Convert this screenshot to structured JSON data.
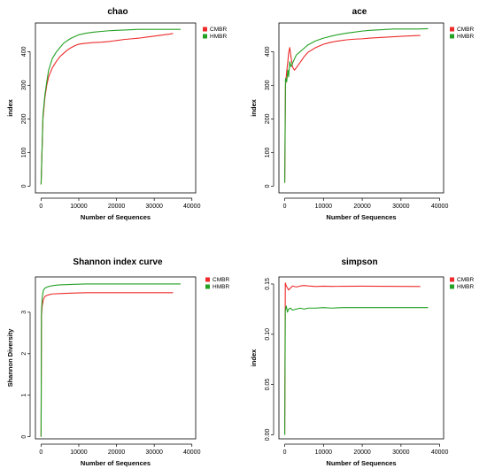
{
  "chart_data": [
    {
      "type": "line",
      "title": "chao",
      "xlabel": "Number of Sequences",
      "ylabel": "index",
      "xlim": [
        -1500,
        41000
      ],
      "ylim": [
        -20,
        485
      ],
      "xticks": [
        0,
        10000,
        20000,
        30000,
        40000
      ],
      "yticks": [
        0,
        100,
        200,
        300,
        400
      ],
      "grid": false,
      "legend_position": "top-right",
      "series": [
        {
          "name": "CMBR",
          "color": "#ee2a2a",
          "x": [
            0,
            500,
            1000,
            1500,
            2000,
            3000,
            4000,
            5000,
            6000,
            7000,
            8000,
            9000,
            10000,
            12000,
            14000,
            16000,
            18000,
            20000,
            22000,
            24000,
            26000,
            28000,
            30000,
            32000,
            34000,
            35000
          ],
          "y": [
            5,
            200,
            262,
            300,
            325,
            352,
            370,
            385,
            395,
            405,
            412,
            418,
            422,
            425,
            427,
            428,
            430,
            433,
            436,
            438,
            440,
            443,
            446,
            449,
            452,
            454
          ]
        },
        {
          "name": "HMBR",
          "color": "#23a123",
          "x": [
            0,
            500,
            1000,
            1500,
            2000,
            3000,
            4000,
            5000,
            6000,
            7000,
            8000,
            9000,
            10000,
            12000,
            14000,
            16000,
            18000,
            20000,
            22000,
            24000,
            26000,
            28000,
            30000,
            32000,
            34000,
            37000
          ],
          "y": [
            5,
            210,
            270,
            310,
            345,
            380,
            398,
            412,
            425,
            433,
            440,
            445,
            450,
            455,
            458,
            460,
            462,
            463,
            464,
            465,
            466,
            466,
            466,
            466,
            466,
            466
          ]
        }
      ]
    },
    {
      "type": "line",
      "title": "ace",
      "xlabel": "Number of Sequences",
      "ylabel": "index",
      "xlim": [
        -1500,
        41000
      ],
      "ylim": [
        -20,
        485
      ],
      "xticks": [
        0,
        10000,
        20000,
        30000,
        40000
      ],
      "yticks": [
        0,
        100,
        200,
        300,
        400
      ],
      "grid": false,
      "legend_position": "top-right",
      "series": [
        {
          "name": "CMBR",
          "color": "#ee2a2a",
          "x": [
            0,
            200,
            500,
            800,
            1000,
            1300,
            1600,
            2000,
            2500,
            3000,
            4000,
            5000,
            6000,
            8000,
            10000,
            12000,
            14000,
            16000,
            18000,
            20000,
            22000,
            25000,
            28000,
            31000,
            35000
          ],
          "y": [
            10,
            300,
            340,
            370,
            395,
            412,
            385,
            355,
            345,
            352,
            368,
            385,
            398,
            412,
            422,
            428,
            432,
            435,
            437,
            438,
            440,
            442,
            444,
            446,
            448
          ]
        },
        {
          "name": "HMBR",
          "color": "#23a123",
          "x": [
            0,
            200,
            500,
            800,
            1000,
            1300,
            1600,
            2000,
            2500,
            3000,
            4000,
            5000,
            6000,
            8000,
            10000,
            12000,
            14000,
            16000,
            18000,
            20000,
            22000,
            25000,
            28000,
            31000,
            34000,
            37000
          ],
          "y": [
            10,
            320,
            310,
            345,
            325,
            370,
            355,
            365,
            378,
            390,
            400,
            410,
            420,
            432,
            440,
            446,
            451,
            455,
            458,
            461,
            463,
            465,
            467,
            467,
            467,
            468
          ]
        }
      ]
    },
    {
      "type": "line",
      "title": "Shannon index curve",
      "xlabel": "Number of Sequences",
      "ylabel": "Shannon Diversity",
      "xlim": [
        -1500,
        41000
      ],
      "ylim": [
        -0.05,
        3.85
      ],
      "xticks": [
        0,
        10000,
        20000,
        30000,
        40000
      ],
      "yticks": [
        0,
        1,
        2,
        3
      ],
      "grid": false,
      "legend_position": "top-right",
      "series": [
        {
          "name": "CMBR",
          "color": "#ee2a2a",
          "x": [
            0,
            100,
            300,
            600,
            1000,
            2000,
            3000,
            5000,
            8000,
            12000,
            16000,
            20000,
            25000,
            30000,
            35000
          ],
          "y": [
            0,
            2.9,
            3.15,
            3.3,
            3.38,
            3.42,
            3.44,
            3.45,
            3.46,
            3.47,
            3.47,
            3.47,
            3.47,
            3.47,
            3.47
          ]
        },
        {
          "name": "HMBR",
          "color": "#23a123",
          "x": [
            0,
            100,
            300,
            600,
            1000,
            2000,
            3000,
            5000,
            8000,
            12000,
            16000,
            20000,
            25000,
            30000,
            35000,
            37000
          ],
          "y": [
            0,
            3.0,
            3.35,
            3.52,
            3.58,
            3.62,
            3.64,
            3.66,
            3.67,
            3.68,
            3.68,
            3.68,
            3.68,
            3.68,
            3.68,
            3.68
          ]
        }
      ]
    },
    {
      "type": "line",
      "title": "simpson",
      "xlabel": "Number of Sequences",
      "ylabel": "index",
      "xlim": [
        -1500,
        41000
      ],
      "ylim": [
        -0.004,
        0.157
      ],
      "xticks": [
        0,
        10000,
        20000,
        30000,
        40000
      ],
      "yticks": [
        0.0,
        0.05,
        0.1,
        0.15
      ],
      "ytick_labels": [
        "0.00",
        "0.05",
        "0.10",
        "0.15"
      ],
      "grid": false,
      "legend_position": "top-right",
      "series": [
        {
          "name": "CMBR",
          "color": "#ee2a2a",
          "x": [
            0,
            150,
            400,
            700,
            1000,
            1500,
            2000,
            3000,
            4000,
            5000,
            6000,
            8000,
            10000,
            12000,
            15000,
            20000,
            25000,
            30000,
            35000
          ],
          "y": [
            0.0,
            0.151,
            0.148,
            0.146,
            0.144,
            0.146,
            0.148,
            0.147,
            0.148,
            0.1485,
            0.148,
            0.1475,
            0.1478,
            0.1476,
            0.1477,
            0.1478,
            0.1477,
            0.1476,
            0.1475
          ]
        },
        {
          "name": "HMBR",
          "color": "#23a123",
          "x": [
            0,
            150,
            400,
            700,
            1000,
            1500,
            2000,
            3000,
            4000,
            5000,
            6000,
            8000,
            10000,
            12000,
            15000,
            20000,
            25000,
            30000,
            35000,
            37000
          ],
          "y": [
            0.0,
            0.124,
            0.128,
            0.122,
            0.125,
            0.126,
            0.124,
            0.125,
            0.126,
            0.125,
            0.126,
            0.126,
            0.1265,
            0.126,
            0.1265,
            0.1265,
            0.1265,
            0.1265,
            0.1265,
            0.1265
          ]
        }
      ]
    }
  ]
}
